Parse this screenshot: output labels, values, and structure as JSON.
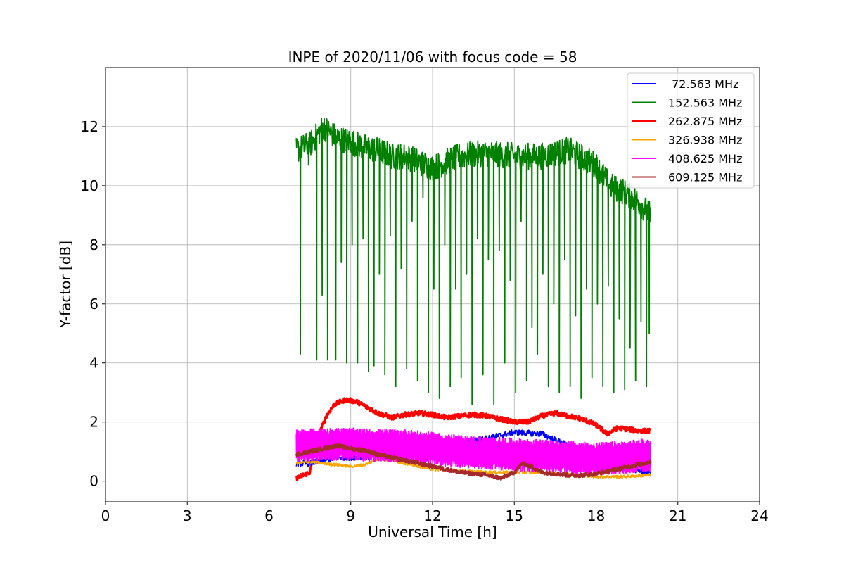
{
  "chart_data": {
    "type": "line",
    "title": "INPE of 2020/11/06 with focus code = 58",
    "xlabel": "Universal Time [h]",
    "ylabel": "Y-factor [dB]",
    "xlim": [
      0,
      24
    ],
    "ylim": [
      -0.7,
      14.0
    ],
    "xticks": [
      0,
      3,
      6,
      9,
      12,
      15,
      18,
      21,
      24
    ],
    "yticks": [
      0,
      2,
      4,
      6,
      8,
      10,
      12
    ],
    "grid": true,
    "legend_position": "top-right",
    "series": [
      {
        "name": " 72.563 MHz",
        "color": "#0000ff",
        "base": [
          [
            7.0,
            0.6
          ],
          [
            7.5,
            0.6
          ],
          [
            8.0,
            0.7
          ],
          [
            8.5,
            0.8
          ],
          [
            9.0,
            0.8
          ],
          [
            10.0,
            0.85
          ],
          [
            11.0,
            0.9
          ],
          [
            12.0,
            1.05
          ],
          [
            13.0,
            1.3
          ],
          [
            14.0,
            1.45
          ],
          [
            15.0,
            1.65
          ],
          [
            16.0,
            1.6
          ],
          [
            17.0,
            1.2
          ],
          [
            18.0,
            0.8
          ],
          [
            19.0,
            0.45
          ],
          [
            20.0,
            0.3
          ]
        ],
        "amplitude": 0.1
      },
      {
        "name": "152.563 MHz",
        "color": "#008000",
        "base": [
          [
            7.0,
            11.2
          ],
          [
            7.5,
            11.4
          ],
          [
            8.0,
            12.0
          ],
          [
            8.5,
            11.6
          ],
          [
            9.0,
            11.5
          ],
          [
            9.5,
            11.3
          ],
          [
            10.0,
            11.2
          ],
          [
            10.5,
            11.0
          ],
          [
            11.0,
            11.0
          ],
          [
            11.5,
            10.8
          ],
          [
            12.0,
            10.6
          ],
          [
            13.0,
            11.0
          ],
          [
            14.0,
            11.1
          ],
          [
            15.0,
            11.0
          ],
          [
            16.0,
            11.0
          ],
          [
            17.0,
            11.2
          ],
          [
            18.0,
            10.7
          ],
          [
            18.5,
            10.0
          ],
          [
            19.0,
            9.8
          ],
          [
            19.5,
            9.5
          ],
          [
            20.0,
            9.0
          ]
        ],
        "amplitude": 0.45,
        "dips": [
          [
            7.15,
            4.3
          ],
          [
            7.45,
            10.7
          ],
          [
            7.75,
            4.1
          ],
          [
            7.95,
            6.3
          ],
          [
            8.15,
            4.1
          ],
          [
            8.45,
            4.1
          ],
          [
            8.65,
            7.4
          ],
          [
            8.85,
            4.0
          ],
          [
            9.05,
            8.0
          ],
          [
            9.25,
            4.0
          ],
          [
            9.45,
            8.2
          ],
          [
            9.65,
            3.7
          ],
          [
            9.85,
            3.9
          ],
          [
            10.05,
            7.0
          ],
          [
            10.25,
            3.6
          ],
          [
            10.45,
            8.3
          ],
          [
            10.65,
            3.2
          ],
          [
            10.85,
            7.2
          ],
          [
            11.05,
            3.8
          ],
          [
            11.25,
            8.8
          ],
          [
            11.45,
            3.4
          ],
          [
            11.65,
            9.6
          ],
          [
            11.85,
            3.0
          ],
          [
            12.05,
            6.5
          ],
          [
            12.25,
            2.8
          ],
          [
            12.45,
            8.0
          ],
          [
            12.65,
            3.2
          ],
          [
            12.85,
            6.5
          ],
          [
            13.05,
            3.5
          ],
          [
            13.25,
            7.0
          ],
          [
            13.45,
            2.6
          ],
          [
            13.65,
            8.2
          ],
          [
            13.85,
            3.6
          ],
          [
            14.05,
            7.5
          ],
          [
            14.25,
            2.6
          ],
          [
            14.45,
            7.8
          ],
          [
            14.65,
            4.0
          ],
          [
            14.85,
            6.8
          ],
          [
            15.05,
            3.0
          ],
          [
            15.25,
            8.8
          ],
          [
            15.45,
            3.4
          ],
          [
            15.65,
            5.2
          ],
          [
            15.85,
            4.3
          ],
          [
            16.05,
            7.0
          ],
          [
            16.25,
            3.2
          ],
          [
            16.45,
            6.0
          ],
          [
            16.65,
            3.0
          ],
          [
            16.85,
            7.5
          ],
          [
            17.05,
            3.2
          ],
          [
            17.25,
            5.6
          ],
          [
            17.45,
            2.8
          ],
          [
            17.65,
            6.5
          ],
          [
            17.85,
            3.5
          ],
          [
            18.05,
            6.0
          ],
          [
            18.25,
            3.2
          ],
          [
            18.45,
            6.6
          ],
          [
            18.65,
            3.0
          ],
          [
            18.85,
            5.5
          ],
          [
            19.05,
            3.1
          ],
          [
            19.25,
            4.5
          ],
          [
            19.45,
            3.4
          ],
          [
            19.65,
            5.4
          ],
          [
            19.85,
            3.2
          ],
          [
            19.95,
            5.0
          ]
        ]
      },
      {
        "name": "262.875 MHz",
        "color": "#ff0000",
        "base": [
          [
            7.0,
            0.1
          ],
          [
            7.5,
            0.3
          ],
          [
            7.8,
            1.5
          ],
          [
            8.1,
            2.2
          ],
          [
            8.4,
            2.6
          ],
          [
            8.8,
            2.75
          ],
          [
            9.2,
            2.7
          ],
          [
            9.6,
            2.5
          ],
          [
            10.0,
            2.3
          ],
          [
            10.5,
            2.15
          ],
          [
            11.0,
            2.25
          ],
          [
            11.5,
            2.3
          ],
          [
            12.0,
            2.25
          ],
          [
            12.5,
            2.15
          ],
          [
            13.0,
            2.2
          ],
          [
            13.5,
            2.25
          ],
          [
            14.0,
            2.2
          ],
          [
            14.5,
            2.1
          ],
          [
            15.0,
            2.0
          ],
          [
            15.5,
            2.0
          ],
          [
            16.0,
            2.2
          ],
          [
            16.5,
            2.3
          ],
          [
            17.0,
            2.2
          ],
          [
            17.5,
            2.1
          ],
          [
            18.0,
            1.9
          ],
          [
            18.4,
            1.6
          ],
          [
            18.8,
            1.8
          ],
          [
            19.2,
            1.75
          ],
          [
            19.6,
            1.7
          ],
          [
            20.0,
            1.7
          ]
        ],
        "amplitude": 0.08
      },
      {
        "name": "326.938 MHz",
        "color": "#ffa500",
        "base": [
          [
            7.0,
            0.6
          ],
          [
            7.5,
            0.65
          ],
          [
            8.0,
            0.6
          ],
          [
            8.5,
            0.55
          ],
          [
            9.0,
            0.5
          ],
          [
            9.5,
            0.55
          ],
          [
            10.0,
            0.75
          ],
          [
            10.5,
            0.7
          ],
          [
            11.0,
            0.6
          ],
          [
            11.5,
            0.5
          ],
          [
            12.0,
            0.4
          ],
          [
            13.0,
            0.35
          ],
          [
            14.0,
            0.3
          ],
          [
            15.0,
            0.3
          ],
          [
            16.0,
            0.3
          ],
          [
            17.0,
            0.25
          ],
          [
            18.0,
            0.15
          ],
          [
            19.0,
            0.15
          ],
          [
            20.0,
            0.2
          ]
        ],
        "amplitude": 0.05
      },
      {
        "name": "408.625 MHz",
        "color": "#ff00ff",
        "base": [
          [
            7.0,
            1.2
          ],
          [
            8.0,
            1.25
          ],
          [
            9.0,
            1.25
          ],
          [
            10.0,
            1.2
          ],
          [
            11.0,
            1.2
          ],
          [
            12.0,
            1.1
          ],
          [
            13.0,
            1.0
          ],
          [
            14.0,
            0.95
          ],
          [
            15.0,
            0.9
          ],
          [
            16.0,
            0.85
          ],
          [
            17.0,
            0.8
          ],
          [
            18.0,
            0.75
          ],
          [
            19.0,
            0.8
          ],
          [
            20.0,
            0.9
          ]
        ],
        "amplitude": 0.55
      },
      {
        "name": "609.125 MHz",
        "color": "#a52a2a",
        "base": [
          [
            7.0,
            0.9
          ],
          [
            7.5,
            1.0
          ],
          [
            8.0,
            1.1
          ],
          [
            8.5,
            1.2
          ],
          [
            9.0,
            1.1
          ],
          [
            9.5,
            1.05
          ],
          [
            10.0,
            0.9
          ],
          [
            10.5,
            0.8
          ],
          [
            11.0,
            0.7
          ],
          [
            11.5,
            0.6
          ],
          [
            12.0,
            0.5
          ],
          [
            12.5,
            0.4
          ],
          [
            13.0,
            0.3
          ],
          [
            13.5,
            0.25
          ],
          [
            14.0,
            0.2
          ],
          [
            14.5,
            0.1
          ],
          [
            15.0,
            0.3
          ],
          [
            15.3,
            0.6
          ],
          [
            15.6,
            0.5
          ],
          [
            16.0,
            0.3
          ],
          [
            16.5,
            0.25
          ],
          [
            17.0,
            0.2
          ],
          [
            17.5,
            0.2
          ],
          [
            18.0,
            0.25
          ],
          [
            18.5,
            0.35
          ],
          [
            19.0,
            0.45
          ],
          [
            19.5,
            0.55
          ],
          [
            20.0,
            0.65
          ]
        ],
        "amplitude": 0.06
      }
    ]
  }
}
